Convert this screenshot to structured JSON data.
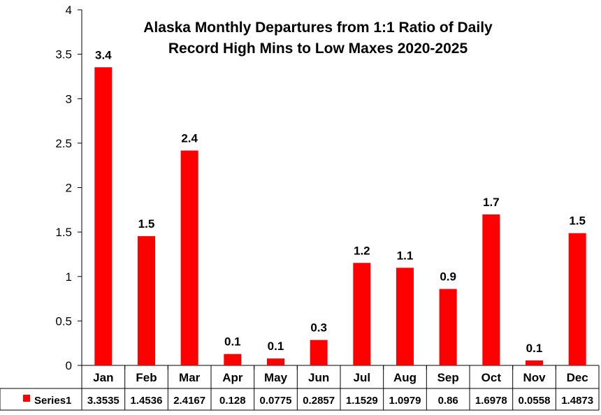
{
  "chart_data": {
    "type": "bar",
    "title_lines": [
      "Alaska Monthly Departures from 1:1 Ratio of Daily",
      "Record High Mins to Low Maxes 2020-2025"
    ],
    "categories": [
      "Jan",
      "Feb",
      "Mar",
      "Apr",
      "May",
      "Jun",
      "Jul",
      "Aug",
      "Sep",
      "Oct",
      "Nov",
      "Dec"
    ],
    "series": [
      {
        "name": "Series1",
        "color": "#ff0000",
        "values": [
          3.3535,
          1.4536,
          2.4167,
          0.128,
          0.0775,
          0.2857,
          1.1529,
          1.0979,
          0.86,
          1.6978,
          0.0558,
          1.4873
        ],
        "value_labels": [
          "3.4",
          "1.5",
          "2.4",
          "0.1",
          "0.1",
          "0.3",
          "1.2",
          "1.1",
          "0.9",
          "1.7",
          "0.1",
          "1.5"
        ],
        "table_values": [
          "3.3535",
          "1.4536",
          "2.4167",
          "0.128",
          "0.0775",
          "0.2857",
          "1.1529",
          "1.0979",
          "0.86",
          "1.6978",
          "0.0558",
          "1.4873"
        ]
      }
    ],
    "y_ticks": [
      "0",
      "0.5",
      "1",
      "1.5",
      "2",
      "2.5",
      "3",
      "3.5",
      "4"
    ],
    "ylim": [
      0,
      4
    ],
    "grid": false,
    "legend": "data-table-left"
  }
}
